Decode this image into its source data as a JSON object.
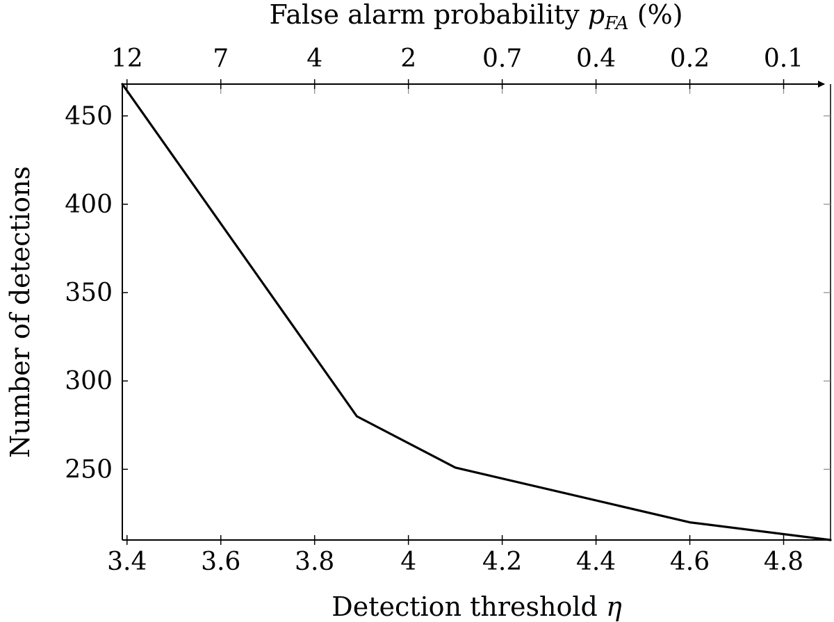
{
  "chart_data": {
    "type": "line",
    "xlabel_text": "Detection threshold ",
    "xlabel_symbol": "η",
    "ylabel": "Number of detections",
    "top_xlabel_text": "False alarm probability ",
    "top_xlabel_symbol_base": "p",
    "top_xlabel_symbol_sub": "FA",
    "top_xlabel_unit": " (%)",
    "xlim": [
      3.39,
      4.9
    ],
    "ylim": [
      210,
      468
    ],
    "x_ticks": [
      3.4,
      3.6,
      3.8,
      4.0,
      4.2,
      4.4,
      4.6,
      4.8
    ],
    "x_tick_labels": [
      "3.4",
      "3.6",
      "3.8",
      "4",
      "4.2",
      "4.4",
      "4.6",
      "4.8"
    ],
    "y_ticks": [
      250,
      300,
      350,
      400,
      450
    ],
    "y_tick_labels": [
      "250",
      "300",
      "350",
      "400",
      "450"
    ],
    "top_ticks": [
      3.4,
      3.6,
      3.8,
      4.0,
      4.2,
      4.4,
      4.6,
      4.8
    ],
    "top_tick_labels": [
      "12",
      "7",
      "4",
      "2",
      "0.7",
      "0.4",
      "0.2",
      "0.1"
    ],
    "grid": false,
    "series": [
      {
        "color": "#000000",
        "x": [
          3.39,
          3.89,
          4.1,
          4.6,
          4.9
        ],
        "y": [
          468,
          280,
          251,
          220,
          210
        ]
      }
    ]
  }
}
